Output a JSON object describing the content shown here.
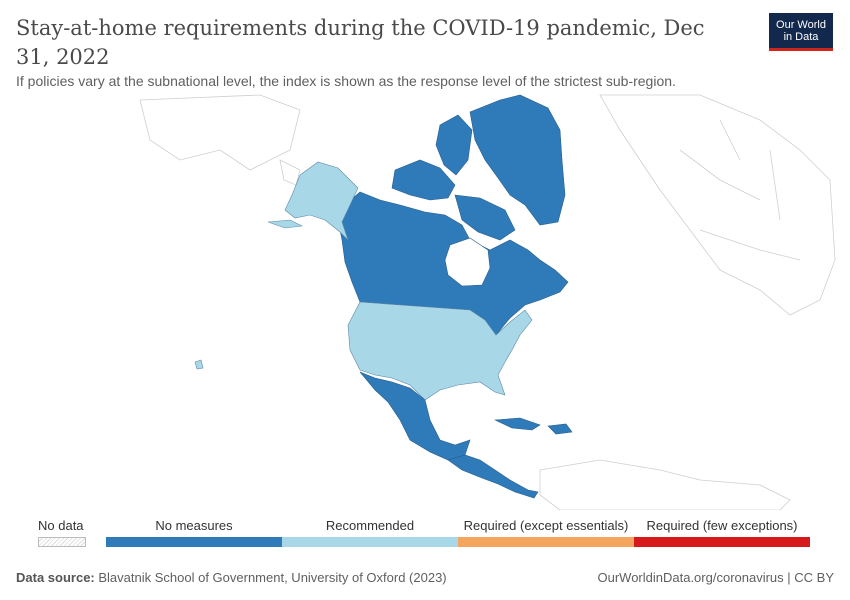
{
  "title": "Stay-at-home requirements during the COVID-19 pandemic, Dec 31, 2022",
  "subtitle": "If policies vary at the subnational level, the index is shown as the response level of the strictest sub-region.",
  "logo": {
    "line1": "Our World",
    "line2": "in Data"
  },
  "legend": {
    "no_data": "No data",
    "categories": [
      {
        "label": "No measures",
        "color": "#2f7ab8"
      },
      {
        "label": "Recommended",
        "color": "#a8d7e8"
      },
      {
        "label": "Required (except essentials)",
        "color": "#f4a55e"
      },
      {
        "label": "Required (few exceptions)",
        "color": "#d7191c"
      }
    ]
  },
  "regions": [
    {
      "name": "Canada",
      "category": "No measures",
      "color": "#2f7ab8"
    },
    {
      "name": "Greenland",
      "category": "No measures",
      "color": "#2f7ab8"
    },
    {
      "name": "Mexico",
      "category": "No measures",
      "color": "#2f7ab8"
    },
    {
      "name": "Central America",
      "category": "No measures",
      "color": "#2f7ab8"
    },
    {
      "name": "Caribbean",
      "category": "No measures",
      "color": "#2f7ab8"
    },
    {
      "name": "United States",
      "category": "Recommended",
      "color": "#a8d7e8"
    },
    {
      "name": "Alaska",
      "category": "Recommended",
      "color": "#a8d7e8"
    }
  ],
  "footer": {
    "source_label": "Data source:",
    "source_text": "Blavatnik School of Government, University of Oxford (2023)",
    "right_text": "OurWorldinData.org/coronavirus | CC BY"
  }
}
